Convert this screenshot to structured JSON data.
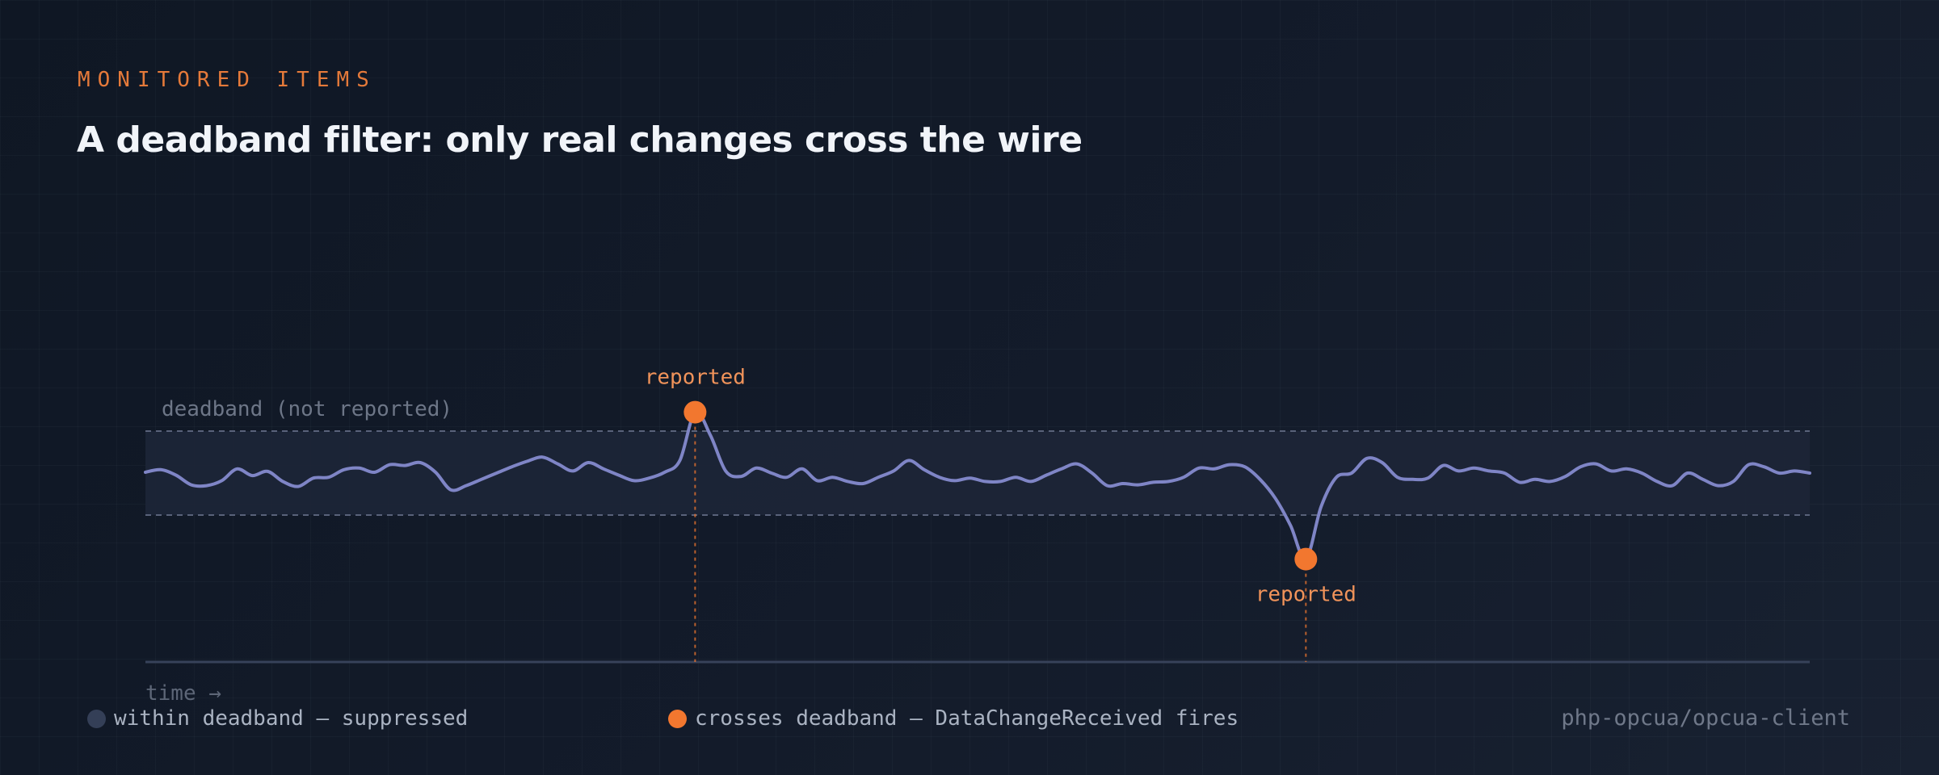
{
  "header": {
    "eyebrow": "MONITORED ITEMS",
    "title": "A deadband filter: only real changes cross the wire"
  },
  "chart_data": {
    "type": "line",
    "band_label": "deadband (not reported)",
    "x_axis_label": "time →",
    "series": [
      {
        "values": [
          0.02,
          0.08,
          -0.05,
          -0.28,
          -0.3,
          -0.18,
          0.1,
          -0.06,
          0.04,
          -0.2,
          -0.32,
          -0.12,
          -0.1,
          0.08,
          0.12,
          0.02,
          0.2,
          0.18,
          0.25,
          0.02,
          -0.4,
          -0.3,
          -0.15,
          0.0,
          0.15,
          0.28,
          0.38,
          0.22,
          0.05,
          0.25,
          0.1,
          -0.05,
          -0.18,
          -0.12,
          0.02,
          0.3,
          1.45,
          0.9,
          0.05,
          -0.08,
          0.12,
          0.0,
          -0.1,
          0.1,
          -0.18,
          -0.1,
          -0.2,
          -0.25,
          -0.1,
          0.05,
          0.3,
          0.08,
          -0.1,
          -0.18,
          -0.12,
          -0.2,
          -0.2,
          -0.1,
          -0.2,
          -0.05,
          0.1,
          0.22,
          0.0,
          -0.3,
          -0.25,
          -0.28,
          -0.22,
          -0.2,
          -0.1,
          0.12,
          0.1,
          0.2,
          0.15,
          -0.15,
          -0.6,
          -1.25,
          -2.05,
          -0.8,
          -0.1,
          0.0,
          0.35,
          0.25,
          -0.1,
          -0.15,
          -0.12,
          0.18,
          0.05,
          0.12,
          0.05,
          0.0,
          -0.22,
          -0.15,
          -0.2,
          -0.08,
          0.15,
          0.22,
          0.05,
          0.1,
          0.0,
          -0.2,
          -0.3,
          0.0,
          -0.15,
          -0.3,
          -0.2,
          0.2,
          0.15,
          0.0,
          0.05,
          0.0
        ],
        "highlighted": [
          {
            "index": 36,
            "label": "reported"
          },
          {
            "index": 76,
            "label": "reported"
          }
        ]
      }
    ],
    "deadband": [
      -1.0,
      1.0
    ],
    "ylim": [
      -2.5,
      2.5
    ]
  },
  "legend": {
    "suppressed": "within deadband — suppressed",
    "fires": "crosses deadband — DataChangeReceived fires"
  },
  "footer": {
    "repo": "php-opcua/opcua-client"
  },
  "colors": {
    "accent": "#f2772f",
    "series": "#7f85c6",
    "band_fill": "#1c2537",
    "band_edge": "#59627a",
    "axis": "#37425a"
  }
}
